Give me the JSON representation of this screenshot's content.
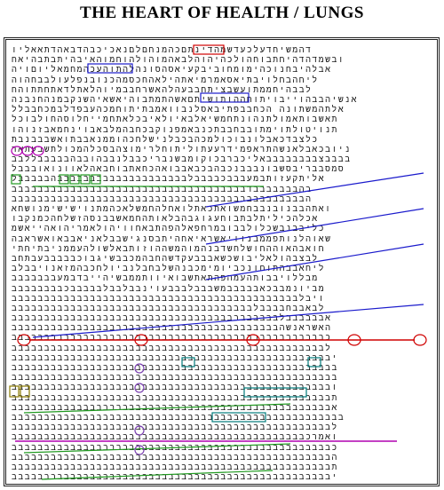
{
  "title": "THE HEART OF HEALTH / LUNGS",
  "grid_rows": [
    "דהמשיחדעלכעדשמהדינתםכהמנחםלםנאכיכבהדבאהדתאאליו",
    "ובשמדהדהיחתבוחהולכהיהוהלבאהמוהולהוחמוהאיבהיתבתבהיאח",
    "אבלהיבחנוכהימומחוביבקעיאסהסונהלהתוהעכהמחמאליוםויה",
    "ליחהבחלויבתיאסאמרמיאתהילאהחכסמהכנובנפלעולבבחהוה",
    "לבבהיחממתועשבציתחבבעהלהאשרחבבמיוהלאתלדאתחתתוהח",
    "אנשיהבבהוייבויתוחההותושיתםאשהתמתבוהיאשאיהשנקבמנהחנבנה",
    "אלתהמשתונה הכחבבפתיבאסלנבוואמבתיתוחמכהעבפדלבמכחבבלל",
    "תאשבותאמולתנהונתחמשיאלבאיולאיבכלאתחמייחלוסהחולבוכל",
    "תנויטולתוימתובבחבבתכנבאמפנוקבכחבהמלבאבוינחמאבזנוהו",
    "כלצבדכאבלונבוכולמכהבכבלנישלחכהוממנאבבתואשבבבנבת",
    "ניובכאבלאנשהתראפמידרעעתוליתוחלרימוצהבסכלהמכולתשבעתאר",
    "בבבבצבבבבבבבבאליכברבכוקומבשנבריכבבלנבבהובבהבבבבבללבב",
    "סמסבבריבסשבונבבבנכבהבכבאבבואהכחאתבוחבאהלאוונואובבבל",
    "אליתקעזותבמעבבבכבבבבלבבבבבבבבבבבבבבבבבבבבהבבבבבל",
    "בהבבבבבבבדבבבבבבבבבבבבבבבבבבבבבבבבבבבבבבבבבבבב",
    "הבבבבבבבבבבבבבבבבבבבבבבבבבבבבבבבבבבבבבבבבבבבבב",
    "ואתהבבנובנבבחמשואתכאתלואחלהחמשלאכהמתנוישישימנושחא",
    "אכלהכיליתלבתבוחעגוגבהבלאותהחמאשבבנסהזשלחהכמנקבו",
    "כליבבנבשכלולבבובמרחפאלהפהתבאחוויהולאמריהואהייאשמ",
    "שאוהלנותפממבנוויאשראיאחהיתבסנגישבבלאניאבבאואשראבה",
    "חואבהאוההחושלחשדבנהמוהמשההוזותבאלשולהעממניבתיחתי",
    "לבצבהולאליבושכשאבבבעקדשהחבהמכבבשיגבוכבבבבבעבתחב",
    "ליחאבבהתוחונכביומימכבנהשלבחבלנביולחכבהמזאנויבבלב",
    "מבללויבבותהעמהפהתאתשבואיוותממבשיהייבדבמעבבבבבבב",
    "מביונמבבכאבבבבבמשבבבלבבבעוינבבלבבלבבבבבכבבבבבבבב",
    "ויבלבבבבבבבבבבבבבבבבבבבבבבבבבבבבבבבבבבבבבבבבבבבב",
    "לבאבבחבבבבלבבבבבבבבבבבבבבבבבבבבבבבבבבבבבבבבבבבבב",
    "אבבבבבבלבבבבבבבבבבבבבבבבבבבבבבבבבבבבבבבבבבבבבבבבב",
    "האשראנשהבבבבבבבבבבבבבבבבבבבבבבבבבבבבבבבבבבבבבבבבב",
    "כבבבבבבבבבבבבבבבבבבבבבבבבבבבבבבבבבבבבבבבבבבבבבבבב",
    "לבבבבבבבבבבבבבבבבבבבבבבבבבבבבבבבבבבבבבבבבבבבבבבבב",
    "יבבבבבבבבבבבבבבבבבבבבבבבבבבבבבבבבבבבבבבבבבבבבבבבבב",
    "בבבבבבבבבבבבבבבבבבבבבבבבבבבבבבבבבבבבבבבבבבבבבבבבבב",
    "בבבבבבבבבבבבבבבבבבבבבבבבבבבבבבבבבבבבבבבבבבבבבבבבבב",
    "ובבבבבבבבבבבבבבבבבבבבבבבבבבבבבבבבבבבבבבבבבבבבבבבבב",
    "תבבבבבבבבבבבבבבבבבבבבבבבבבבבבבבבבבבבבבבבבבבבבבבבבב",
    "אבבבבבבבבבבבבבבבבבבבבבבבבבבבבבבבבבבבבבבבבבבבבבבבבב",
    "בבבבבבבבבבבבבבבבבבבבבבבבבבבבבבבבבבבבבבבבבבבבבבבבבבב",
    "לבבבבבבבבבבבבבבבבבבבבבבבבבבבבבבבבבבבבבבבבבבבבבבבבב",
    "ואמרכבבבבבבבבבבבבבבבבבבבבבבבבבבבבבבבבבבבבבבבבבבבבב",
    "כבבבבבבבבבבבבבבבבבבבבבבבבבבבבבבבבבבבבבבבבבבבבבבבבב",
    "הבבבבבבבבבבבבבבבבבבבבבבבבבבבבבבבבבבבבבבבבבבבבבבבבב",
    "תבבבבבבבבבבבבבבבבבבבבבבבבבבבבבבבבבבבבבבבבבבבבבבבבב",
    "יבבבבבבבבבבבבבבבבבבבבבבבבבבבבבבבבבבבבבבבבבבבבבבבבב"
  ],
  "colors": {
    "red": "#d00000",
    "blue": "#1a1acc",
    "teal": "#007c7c",
    "green": "#1f9a1f",
    "olive": "#8a7a00",
    "magenta": "#b000b0",
    "purple": "#7a3fb0"
  }
}
